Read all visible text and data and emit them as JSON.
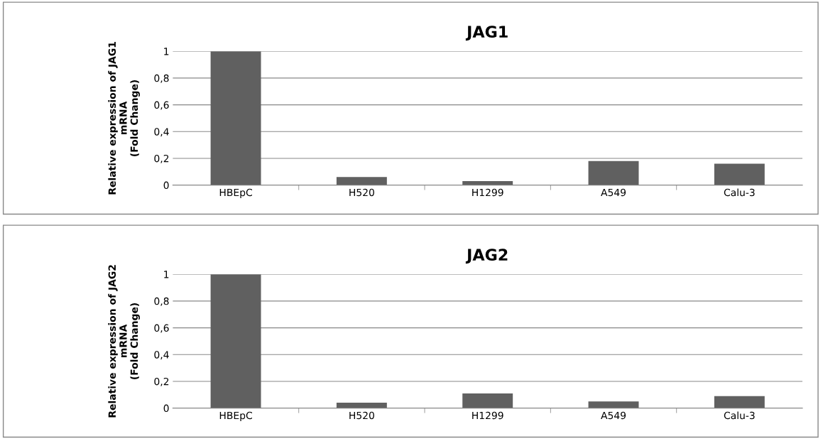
{
  "chart_data": [
    {
      "type": "bar",
      "title": "JAG1",
      "ylabel": "Relative expression of JAG1\nmRNA\n(Fold Change)",
      "categories": [
        "HBEpC",
        "H520",
        "H1299",
        "A549",
        "Calu-3"
      ],
      "values": [
        1,
        0.06,
        0.03,
        0.18,
        0.16
      ],
      "color": "#606060",
      "ylim": [
        0,
        1
      ],
      "yticks": [
        0,
        {
          "value": 0.2,
          "label": "0,2"
        },
        {
          "value": 0.4,
          "label": "0,4"
        },
        {
          "value": 0.6,
          "label": "0,6"
        },
        {
          "value": 0.8,
          "label": "0,8"
        },
        1
      ],
      "grid": "y",
      "legend": false
    },
    {
      "type": "bar",
      "title": "JAG2",
      "ylabel": "Relative expression of JAG2\nmRNA\n(Fold Change)",
      "categories": [
        "HBEpC",
        "H520",
        "H1299",
        "A549",
        "Calu-3"
      ],
      "values": [
        1,
        0.04,
        0.11,
        0.05,
        0.09
      ],
      "color": "#606060",
      "ylim": [
        0,
        1
      ],
      "yticks": [
        0,
        {
          "value": 0.2,
          "label": "0,2"
        },
        {
          "value": 0.4,
          "label": "0,4"
        },
        {
          "value": 0.6,
          "label": "0,6"
        },
        {
          "value": 0.8,
          "label": "0,8"
        },
        1
      ],
      "grid": "y",
      "legend": false
    }
  ]
}
